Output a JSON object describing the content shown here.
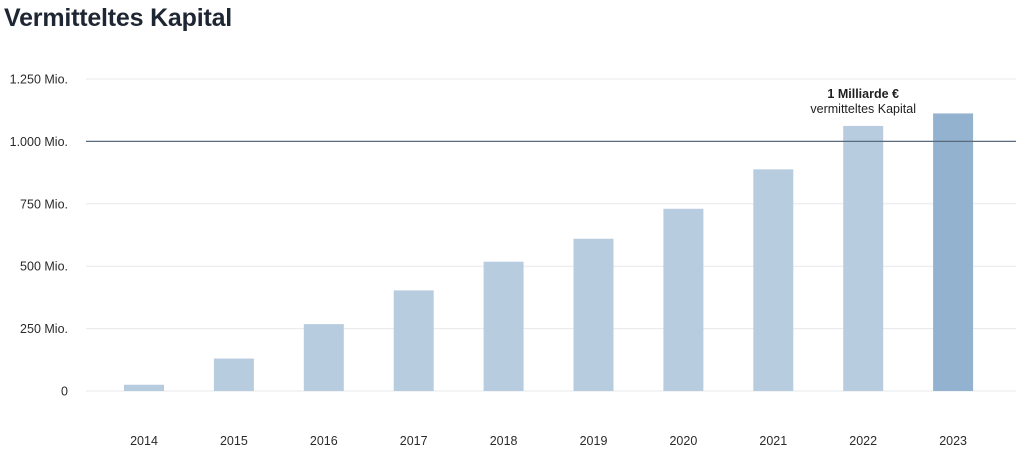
{
  "page": {
    "title": "Vermitteltes Kapital"
  },
  "chart_data": {
    "type": "bar",
    "title": "Vermitteltes Kapital",
    "xlabel": "",
    "ylabel": "",
    "categories": [
      "2014",
      "2015",
      "2016",
      "2017",
      "2018",
      "2019",
      "2020",
      "2021",
      "2022",
      "2023"
    ],
    "values": [
      25,
      130,
      268,
      403,
      518,
      610,
      730,
      888,
      1062,
      1112
    ],
    "ylim": [
      0,
      1250
    ],
    "y_ticks": [
      0,
      250,
      500,
      750,
      1000,
      1250
    ],
    "y_tick_labels": [
      "0",
      "250 Mio.",
      "500 Mio.",
      "750 Mio.",
      "1.000 Mio.",
      "1.250 Mio."
    ],
    "grid": true,
    "reference_line": {
      "value": 1000
    },
    "highlight_category": "2023",
    "annotation": {
      "category": "2022",
      "line1": "1 Milliarde €",
      "line2": "vermitteltes Kapital"
    },
    "colors": {
      "bar": "#b8ccdf",
      "bar_highlight": "#93b2cf",
      "reference_line": "#5a6b7e",
      "grid": "#e6e9ed"
    }
  }
}
